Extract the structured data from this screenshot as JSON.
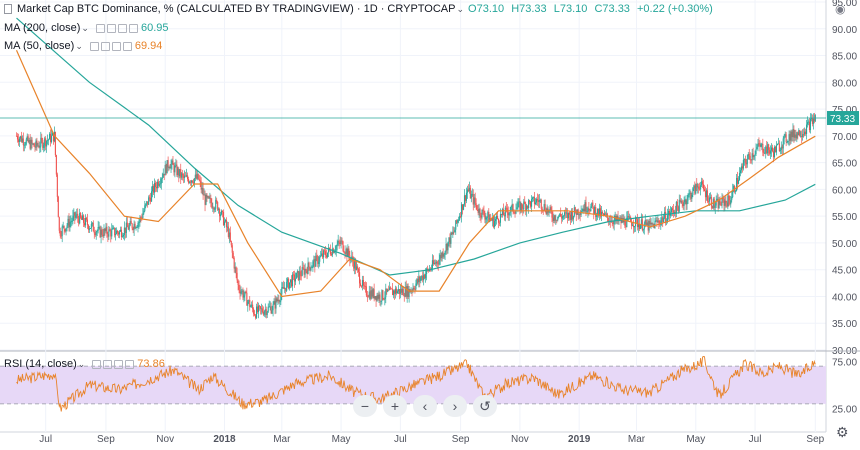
{
  "header": {
    "title": "Market Cap BTC Dominance, % (CALCULATED BY TRADINGVIEW) · 1D · CRYPTOCAP",
    "o": "O73.10",
    "h": "H73.33",
    "l": "L73.10",
    "c": "C73.33",
    "chg": "+0.22 (+0.30%)"
  },
  "indicators": {
    "ma200": {
      "label": "MA (200, close)",
      "value": "60.95",
      "color": "#26a69a"
    },
    "ma50": {
      "label": "MA (50, close)",
      "value": "69.94",
      "color": "#e8832a"
    },
    "rsi": {
      "label": "RSI (14, close)",
      "value": "73.86",
      "color": "#e8832a"
    }
  },
  "price_tag": {
    "value": "73.33",
    "color": "#26a69a"
  },
  "colors": {
    "up": "#26a69a",
    "down": "#ef5350",
    "rsi_band": "#e7d8f7",
    "grid": "#f0f3fa"
  },
  "chart_data": [
    {
      "type": "candlestick",
      "ylim": [
        30,
        95
      ],
      "yticks": [
        "95.00",
        "90.00",
        "85.00",
        "80.00",
        "75.00",
        "70.00",
        "65.00",
        "60.00",
        "55.00",
        "50.00",
        "45.00",
        "40.00",
        "35.00",
        "30.00"
      ],
      "xticks": [
        "Jul",
        "Sep",
        "Nov",
        "2018",
        "Mar",
        "May",
        "Jul",
        "Sep",
        "Nov",
        "2019",
        "Mar",
        "May",
        "Jul",
        "Sep"
      ],
      "close_points": [
        [
          "2017-06-01",
          70
        ],
        [
          "2017-06-20",
          68
        ],
        [
          "2017-07-10",
          70
        ],
        [
          "2017-07-15",
          52
        ],
        [
          "2017-08-01",
          55
        ],
        [
          "2017-08-25",
          52
        ],
        [
          "2017-09-15",
          52
        ],
        [
          "2017-10-05",
          54
        ],
        [
          "2017-10-20",
          60
        ],
        [
          "2017-11-05",
          65
        ],
        [
          "2017-11-20",
          62
        ],
        [
          "2017-12-05",
          62
        ],
        [
          "2017-12-12",
          58
        ],
        [
          "2017-12-25",
          57
        ],
        [
          "2018-01-05",
          52
        ],
        [
          "2018-01-15",
          42
        ],
        [
          "2018-02-01",
          37
        ],
        [
          "2018-02-20",
          38
        ],
        [
          "2018-03-05",
          42
        ],
        [
          "2018-03-25",
          45
        ],
        [
          "2018-04-15",
          48
        ],
        [
          "2018-05-01",
          50
        ],
        [
          "2018-05-15",
          46
        ],
        [
          "2018-05-25",
          41
        ],
        [
          "2018-06-10",
          40
        ],
        [
          "2018-06-25",
          41
        ],
        [
          "2018-07-10",
          41
        ],
        [
          "2018-07-25",
          44
        ],
        [
          "2018-08-10",
          47
        ],
        [
          "2018-08-25",
          52
        ],
        [
          "2018-09-08",
          60
        ],
        [
          "2018-09-20",
          56
        ],
        [
          "2018-10-05",
          54
        ],
        [
          "2018-10-20",
          56
        ],
        [
          "2018-11-05",
          57
        ],
        [
          "2018-11-20",
          58
        ],
        [
          "2018-12-05",
          55
        ],
        [
          "2018-12-20",
          55
        ],
        [
          "2019-01-10",
          57
        ],
        [
          "2019-01-25",
          55
        ],
        [
          "2019-02-10",
          54
        ],
        [
          "2019-02-25",
          54
        ],
        [
          "2019-03-15",
          53
        ],
        [
          "2019-04-01",
          55
        ],
        [
          "2019-04-20",
          58
        ],
        [
          "2019-05-05",
          61
        ],
        [
          "2019-05-20",
          57
        ],
        [
          "2019-06-05",
          58
        ],
        [
          "2019-06-20",
          65
        ],
        [
          "2019-07-05",
          68
        ],
        [
          "2019-07-20",
          67
        ],
        [
          "2019-08-05",
          70
        ],
        [
          "2019-08-20",
          71
        ],
        [
          "2019-09-01",
          73.33
        ]
      ],
      "ma200_points": [
        [
          "2017-06-01",
          92
        ],
        [
          "2017-08-15",
          80
        ],
        [
          "2017-10-15",
          72
        ],
        [
          "2017-12-01",
          64
        ],
        [
          "2018-01-15",
          57
        ],
        [
          "2018-03-01",
          52
        ],
        [
          "2018-05-01",
          48
        ],
        [
          "2018-06-20",
          44
        ],
        [
          "2018-08-01",
          45
        ],
        [
          "2018-09-15",
          47
        ],
        [
          "2018-11-01",
          50
        ],
        [
          "2018-12-15",
          52
        ],
        [
          "2019-02-01",
          54
        ],
        [
          "2019-03-15",
          55
        ],
        [
          "2019-05-01",
          56
        ],
        [
          "2019-06-15",
          56
        ],
        [
          "2019-08-01",
          58
        ],
        [
          "2019-09-01",
          60.95
        ]
      ],
      "ma50_points": [
        [
          "2017-06-01",
          86
        ],
        [
          "2017-07-10",
          70
        ],
        [
          "2017-08-15",
          63
        ],
        [
          "2017-09-20",
          55
        ],
        [
          "2017-10-25",
          54
        ],
        [
          "2017-12-01",
          61
        ],
        [
          "2017-12-25",
          61
        ],
        [
          "2018-01-25",
          50
        ],
        [
          "2018-03-01",
          40
        ],
        [
          "2018-04-10",
          41
        ],
        [
          "2018-05-10",
          47
        ],
        [
          "2018-06-10",
          45
        ],
        [
          "2018-07-10",
          41
        ],
        [
          "2018-08-10",
          41
        ],
        [
          "2018-09-10",
          50
        ],
        [
          "2018-10-10",
          56
        ],
        [
          "2018-11-15",
          56
        ],
        [
          "2018-12-20",
          56
        ],
        [
          "2019-02-01",
          55
        ],
        [
          "2019-03-15",
          53
        ],
        [
          "2019-04-20",
          55
        ],
        [
          "2019-05-25",
          58
        ],
        [
          "2019-06-25",
          62
        ],
        [
          "2019-07-25",
          66
        ],
        [
          "2019-09-01",
          69.94
        ]
      ]
    },
    {
      "type": "line",
      "series": [
        {
          "name": "RSI (14, close)"
        }
      ],
      "ylim": [
        15,
        85
      ],
      "band": [
        30,
        70
      ],
      "yticks": [
        "75.00",
        "25.00"
      ],
      "points": [
        [
          "2017-06-01",
          55
        ],
        [
          "2017-07-10",
          62
        ],
        [
          "2017-07-16",
          25
        ],
        [
          "2017-08-15",
          50
        ],
        [
          "2017-09-15",
          45
        ],
        [
          "2017-10-20",
          58
        ],
        [
          "2017-11-10",
          66
        ],
        [
          "2017-12-05",
          45
        ],
        [
          "2017-12-20",
          60
        ],
        [
          "2018-01-20",
          30
        ],
        [
          "2018-02-10",
          33
        ],
        [
          "2018-03-15",
          52
        ],
        [
          "2018-04-20",
          60
        ],
        [
          "2018-05-15",
          42
        ],
        [
          "2018-06-10",
          35
        ],
        [
          "2018-07-10",
          48
        ],
        [
          "2018-08-15",
          62
        ],
        [
          "2018-09-08",
          72
        ],
        [
          "2018-09-25",
          38
        ],
        [
          "2018-10-20",
          52
        ],
        [
          "2018-11-15",
          58
        ],
        [
          "2018-12-10",
          40
        ],
        [
          "2019-01-15",
          60
        ],
        [
          "2019-02-15",
          45
        ],
        [
          "2019-03-15",
          42
        ],
        [
          "2019-04-15",
          64
        ],
        [
          "2019-05-10",
          75
        ],
        [
          "2019-05-25",
          38
        ],
        [
          "2019-06-20",
          72
        ],
        [
          "2019-07-10",
          62
        ],
        [
          "2019-07-25",
          70
        ],
        [
          "2019-08-15",
          60
        ],
        [
          "2019-09-01",
          73.86
        ]
      ]
    }
  ],
  "zoom": {
    "minus": "−",
    "plus": "+",
    "left": "‹",
    "right": "›",
    "reset": "↺"
  }
}
